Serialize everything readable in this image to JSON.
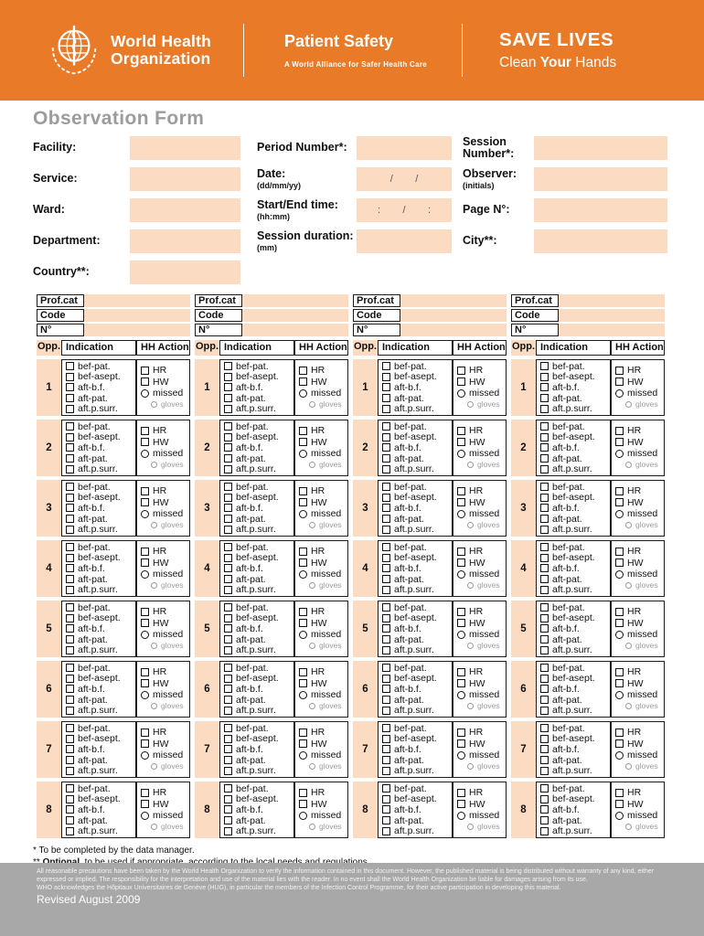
{
  "colors": {
    "brand_orange": "#E87A28",
    "field_peach": "#FBDCC3",
    "footer_gray": "#A8A8A8",
    "title_gray": "#9C9C9C"
  },
  "header": {
    "who_line1": "World Health",
    "who_line2": "Organization",
    "logo_icon": "who-emblem-globe-staff-laurel",
    "program_title": "Patient Safety",
    "program_subtitle": "A World Alliance for Safer Health Care",
    "campaign_title": "SAVE LIVES",
    "campaign_sub_pre": "Clean ",
    "campaign_sub_bold": "Your",
    "campaign_sub_post": " Hands"
  },
  "title": "Observation Form",
  "fields": {
    "facility": {
      "label": "Facility:"
    },
    "service": {
      "label": "Service:"
    },
    "ward": {
      "label": "Ward:"
    },
    "department": {
      "label": "Department:"
    },
    "country": {
      "label": "Country**:"
    },
    "period_number": {
      "label": "Period Number*:"
    },
    "date": {
      "label": "Date:",
      "sub": "(dd/mm/yy)",
      "box_text": "/        /"
    },
    "start_end_time": {
      "label": "Start/End time:",
      "sub": "(hh:mm)",
      "box_text": ":        /        :"
    },
    "session_duration": {
      "label": "Session duration:",
      "sub": "(mm)"
    },
    "session_number": {
      "label": "Session Number*:"
    },
    "observer": {
      "label": "Observer:",
      "sub": "(initials)"
    },
    "page_no": {
      "label": "Page N°:"
    },
    "city": {
      "label": "City**:"
    }
  },
  "table": {
    "group_count": 4,
    "header_fields": [
      {
        "label": "Prof.cat",
        "name": "prof-cat"
      },
      {
        "label": "Code",
        "name": "code"
      },
      {
        "label": "N°",
        "name": "n-number"
      }
    ],
    "opp_header": "Opp.",
    "indication_header": "Indication",
    "action_header": "HH Action",
    "opportunities": [
      "1",
      "2",
      "3",
      "4",
      "5",
      "6",
      "7",
      "8"
    ],
    "indications": [
      {
        "label": "bef-pat.",
        "name": "bef-pat"
      },
      {
        "label": "bef-asept.",
        "name": "bef-asept"
      },
      {
        "label": "aft-b.f.",
        "name": "aft-bf"
      },
      {
        "label": "aft-pat.",
        "name": "aft-pat"
      },
      {
        "label": "aft.p.surr.",
        "name": "aft-p-surr"
      }
    ],
    "actions": [
      {
        "label": "HR",
        "name": "hr",
        "type": "checkbox"
      },
      {
        "label": "HW",
        "name": "hw",
        "type": "checkbox"
      },
      {
        "label": "missed",
        "name": "missed",
        "type": "radio"
      },
      {
        "label": "gloves",
        "name": "gloves",
        "type": "radio-small"
      }
    ]
  },
  "footnotes": {
    "line1": "* To be completed by the data manager.",
    "line2_prefix": "** ",
    "line2_bold": "Optional",
    "line2_rest": ", to be used if appropriate, according to the local needs and regulations."
  },
  "footer": {
    "disclaimer1": "All reasonable precautions have been taken by the World Health Organization to verify the information contained in this document. However, the published material is being distributed without warranty of any kind, either expressed or implied. The responsibility for the interpretation and use of the material lies with the reader. In no event shall the World Health Organization be liable for damages arising from its use.",
    "disclaimer2": "WHO acknowledges the Hôpitaux Universitaires de Genève (HUG), in particular the members of the Infection Control Programme, for their active participation in developing this material.",
    "revised": "Revised August 2009"
  }
}
